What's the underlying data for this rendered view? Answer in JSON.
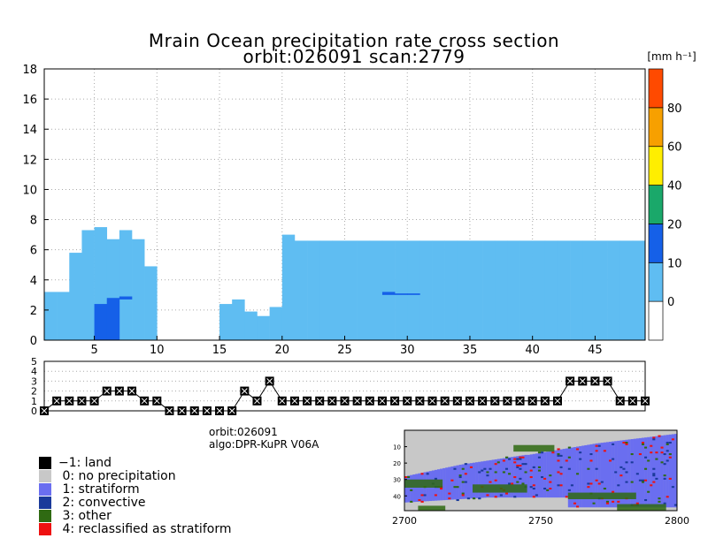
{
  "title_line1": "Mrain Ocean precipitation rate cross section",
  "title_line2": "orbit:026091    scan:2779",
  "orbit_label": "orbit:026091",
  "algo_label": "algo:DPR-KuPR V06A",
  "colors": {
    "rain_light": "#5fbdf2",
    "rain_mid": "#1560e8",
    "land": "#000000",
    "no_precip": "#c8c8c8",
    "stratiform": "#6a6ef0",
    "convective": "#1a3a9a",
    "other": "#2f6a12",
    "reclassified": "#ee1111"
  },
  "chart_data": [
    {
      "type": "heatmap",
      "name": "cross_section",
      "title": "Mrain Ocean precipitation rate cross section",
      "xlim": [
        1,
        49
      ],
      "ylim": [
        0,
        18
      ],
      "xticks": [
        5,
        10,
        15,
        20,
        25,
        30,
        35,
        40,
        45
      ],
      "yticks": [
        0,
        2,
        4,
        6,
        8,
        10,
        12,
        14,
        16,
        18
      ],
      "grid": true,
      "colorbar": {
        "unit": "[mm h⁻¹]",
        "tick_labels": [
          "0",
          "10",
          "20",
          "40",
          "60",
          "80"
        ],
        "colors": [
          "#ffffff",
          "#5fbdf2",
          "#1560e8",
          "#1aa86a",
          "#ffee00",
          "#f7a000",
          "#ff4a00"
        ],
        "bounds": [
          0,
          1,
          2,
          3,
          4,
          5,
          6,
          7
        ]
      },
      "rain_top_km": [
        3.2,
        3.2,
        5.8,
        7.3,
        7.5,
        6.7,
        7.3,
        6.7,
        4.9,
        0,
        0,
        0,
        0,
        0,
        2.4,
        2.7,
        1.9,
        1.6,
        2.2,
        7.0,
        6.6,
        6.6,
        6.6,
        6.6,
        6.6,
        6.6,
        6.6,
        6.6,
        6.6,
        6.6,
        6.6,
        6.6,
        6.6,
        6.6,
        6.6,
        6.6,
        6.6,
        6.6,
        6.6,
        6.6,
        6.6,
        6.6,
        6.6,
        6.6,
        6.6,
        6.6,
        6.6,
        6.6
      ],
      "convective_cells": [
        {
          "scan": 6,
          "bottom_km": 0.0,
          "top_km": 2.4
        },
        {
          "scan": 7,
          "bottom_km": 0.0,
          "top_km": 2.8
        },
        {
          "scan": 8,
          "bottom_km": 2.7,
          "top_km": 2.9
        },
        {
          "scan": 29,
          "bottom_km": 3.0,
          "top_km": 3.2
        },
        {
          "scan": 30,
          "bottom_km": 3.0,
          "top_km": 3.1
        },
        {
          "scan": 31,
          "bottom_km": 3.0,
          "top_km": 3.1
        }
      ]
    },
    {
      "type": "line",
      "name": "rain_type_flag",
      "ylim": [
        0,
        5
      ],
      "yticks": [
        0,
        1,
        2,
        3,
        4,
        5
      ],
      "x": [
        1,
        2,
        3,
        4,
        5,
        6,
        7,
        8,
        9,
        10,
        11,
        12,
        13,
        14,
        15,
        16,
        17,
        18,
        19,
        20,
        21,
        22,
        23,
        24,
        25,
        26,
        27,
        28,
        29,
        30,
        31,
        32,
        33,
        34,
        35,
        36,
        37,
        38,
        39,
        40,
        41,
        42,
        43,
        44,
        45,
        46,
        47,
        48,
        49
      ],
      "values": [
        0,
        1,
        1,
        1,
        1,
        2,
        2,
        2,
        1,
        1,
        0,
        0,
        0,
        0,
        0,
        0,
        2,
        1,
        3,
        1,
        1,
        1,
        1,
        1,
        1,
        1,
        1,
        1,
        1,
        1,
        1,
        1,
        1,
        1,
        1,
        1,
        1,
        1,
        1,
        1,
        1,
        1,
        3,
        3,
        3,
        3,
        1,
        1,
        1
      ]
    },
    {
      "type": "heatmap",
      "name": "scan_swath_map",
      "xlim": [
        2700,
        2800
      ],
      "xticks": [
        2700,
        2750,
        2800
      ],
      "yticks": [
        10,
        20,
        30,
        40
      ],
      "rows": 49
    }
  ],
  "legend": [
    {
      "label": "−1: land",
      "color": "#000000"
    },
    {
      "label": " 0: no precipitation",
      "color": "#c8c8c8"
    },
    {
      "label": " 1: stratiform",
      "color": "#6a6ef0"
    },
    {
      "label": " 2: convective",
      "color": "#1a3a9a"
    },
    {
      "label": " 3: other",
      "color": "#2f6a12"
    },
    {
      "label": " 4: reclassified as stratiform",
      "color": "#ee1111"
    }
  ]
}
